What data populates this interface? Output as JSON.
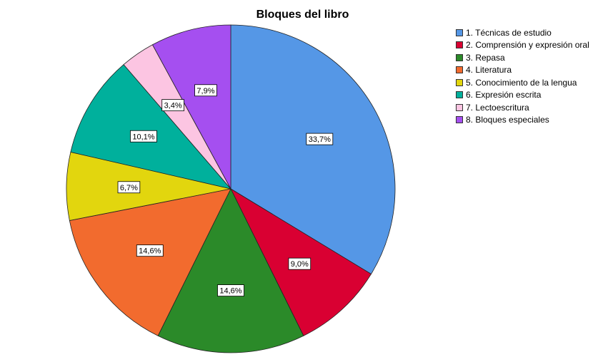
{
  "chart_data": {
    "type": "pie",
    "title": "Bloques del libro",
    "legend_position": "top-right",
    "slices": [
      {
        "label": "1. Técnicas de estudio",
        "value": 33.7,
        "value_label": "33,7%",
        "color": "#5597e6"
      },
      {
        "label": "2. Comprensión y expresión oral",
        "value": 9.0,
        "value_label": "9,0%",
        "color": "#d90032"
      },
      {
        "label": "3. Repasa",
        "value": 14.6,
        "value_label": "14,6%",
        "color": "#2b8a29"
      },
      {
        "label": "4. Literatura",
        "value": 14.6,
        "value_label": "14,6%",
        "color": "#f26b2e"
      },
      {
        "label": "5. Conocimiento de la lengua",
        "value": 6.7,
        "value_label": "6,7%",
        "color": "#e2d60e"
      },
      {
        "label": "6. Expresión escrita",
        "value": 10.1,
        "value_label": "10,1%",
        "color": "#00b09c"
      },
      {
        "label": "7. Lectoescritura",
        "value": 3.4,
        "value_label": "3,4%",
        "color": "#fcc5e2"
      },
      {
        "label": "8. Bloques especiales",
        "value": 7.9,
        "value_label": "7,9%",
        "color": "#a54ff0"
      }
    ]
  }
}
